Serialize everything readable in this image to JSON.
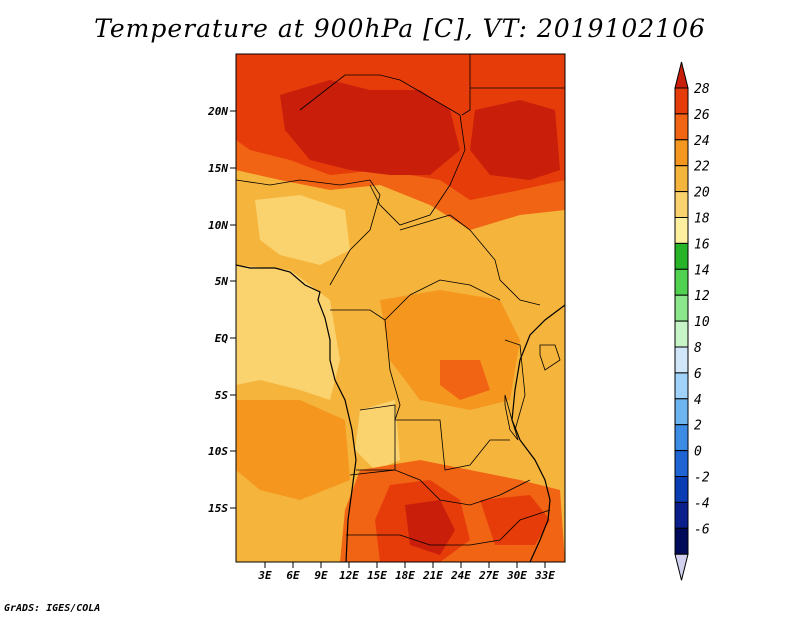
{
  "title": "Temperature at 900hPa [C], VT: 2019102106",
  "credit": "GrADS: IGES/COLA",
  "map": {
    "lat_ticks": [
      "20N",
      "15N",
      "10N",
      "5N",
      "EQ",
      "5S",
      "10S",
      "15S"
    ],
    "lon_ticks": [
      "3E",
      "6E",
      "9E",
      "12E",
      "15E",
      "18E",
      "21E",
      "24E",
      "27E",
      "30E",
      "33E"
    ]
  },
  "colorbar": {
    "labels": [
      "28",
      "26",
      "24",
      "22",
      "20",
      "18",
      "16",
      "14",
      "12",
      "10",
      "8",
      "6",
      "4",
      "2",
      "0",
      "-2",
      "-4",
      "-6"
    ],
    "colors": [
      "#c81e0a",
      "#e63c0a",
      "#f06414",
      "#f5961e",
      "#f5b43c",
      "#fad26e",
      "#fff0a0",
      "#28b428",
      "#50d250",
      "#8ce68c",
      "#c8f5c8",
      "#d2e6fa",
      "#a0d2fa",
      "#6eb4f0",
      "#3c8ce6",
      "#1e64d2",
      "#0a3cb4",
      "#0a1e8c",
      "#000a5a",
      "#d2d2f0"
    ]
  }
}
